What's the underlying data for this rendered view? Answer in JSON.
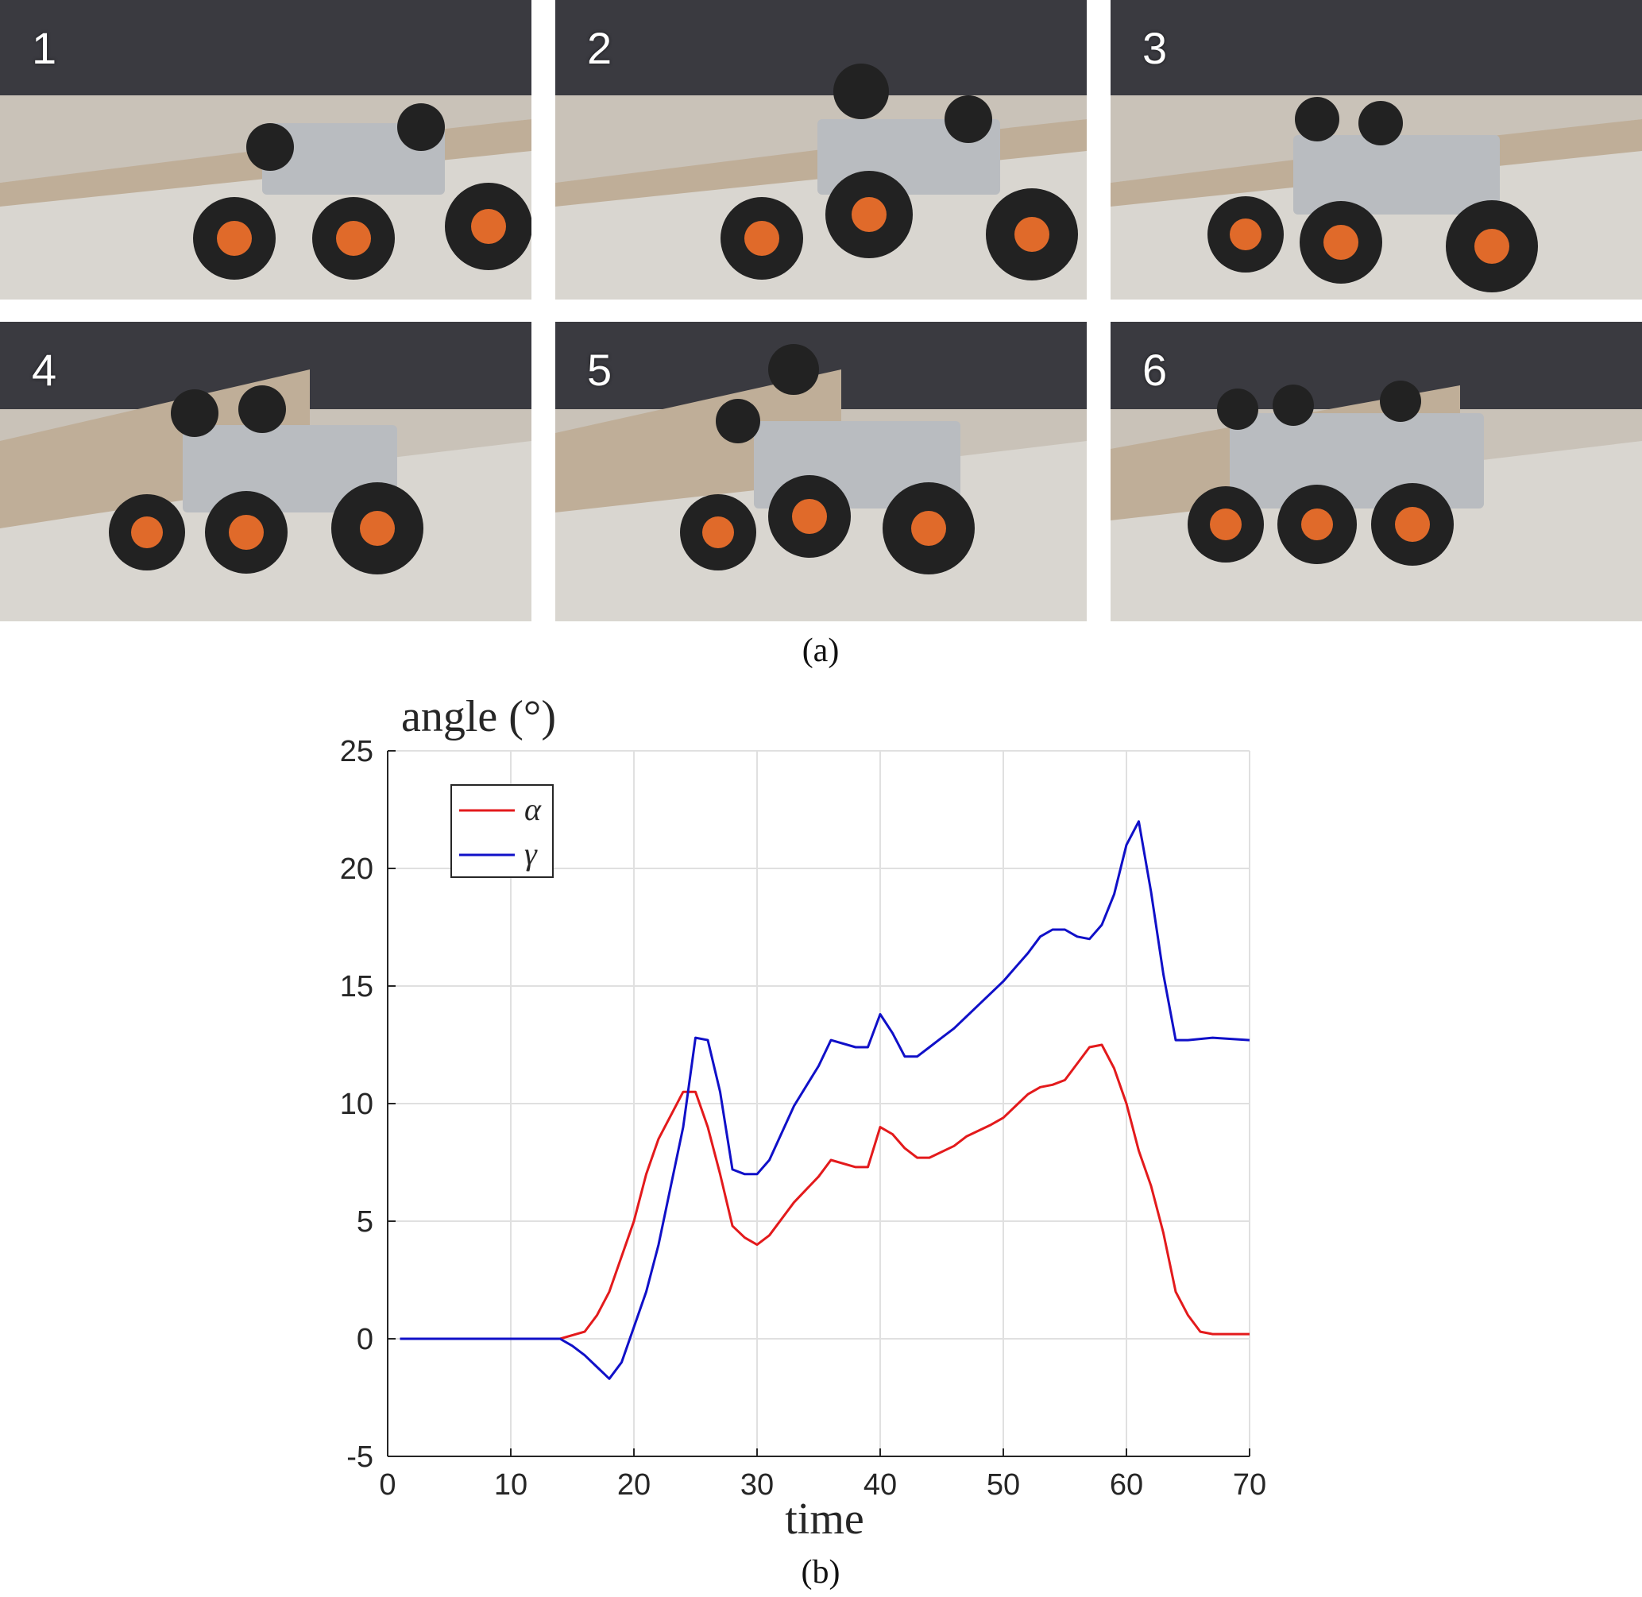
{
  "panel_a": {
    "caption": "(a)",
    "frames": [
      {
        "number": "1"
      },
      {
        "number": "2"
      },
      {
        "number": "3"
      },
      {
        "number": "4"
      },
      {
        "number": "5"
      },
      {
        "number": "6"
      }
    ]
  },
  "panel_b": {
    "caption": "(b)"
  },
  "chart_data": {
    "type": "line",
    "title": "",
    "ylabel": "angle (°)",
    "xlabel": "time",
    "xlim": [
      0,
      70
    ],
    "ylim": [
      -5,
      25
    ],
    "xticks": [
      0,
      10,
      20,
      30,
      40,
      50,
      60,
      70
    ],
    "yticks": [
      -5,
      0,
      5,
      10,
      15,
      20,
      25
    ],
    "grid": true,
    "legend_position": "top-left",
    "series": [
      {
        "name": "α",
        "color": "#e31a1c",
        "x": [
          1,
          14,
          16,
          17,
          18,
          19,
          20,
          21,
          22,
          23,
          24,
          25,
          26,
          27,
          28,
          29,
          30,
          31,
          33,
          35,
          36,
          38,
          39,
          40,
          41,
          42,
          43,
          44,
          46,
          47,
          49,
          50,
          51,
          52,
          53,
          54,
          55,
          57,
          58,
          59,
          60,
          61,
          62,
          63,
          64,
          65,
          66,
          67,
          70
        ],
        "y": [
          0,
          0,
          0.3,
          1.0,
          2.0,
          3.5,
          5.0,
          7.0,
          8.5,
          9.5,
          10.5,
          10.5,
          9.0,
          7.0,
          4.8,
          4.3,
          4.0,
          4.4,
          5.8,
          6.9,
          7.6,
          7.3,
          7.3,
          9.0,
          8.7,
          8.1,
          7.7,
          7.7,
          8.2,
          8.6,
          9.1,
          9.4,
          9.9,
          10.4,
          10.7,
          10.8,
          11.0,
          12.4,
          12.5,
          11.5,
          10.0,
          8.0,
          6.5,
          4.5,
          2.0,
          1.0,
          0.3,
          0.2,
          0.2
        ]
      },
      {
        "name": "γ",
        "color": "#1010c8",
        "x": [
          1,
          14,
          15,
          16,
          17,
          18,
          19,
          20,
          21,
          22,
          23,
          24,
          25,
          26,
          27,
          28,
          29,
          30,
          31,
          33,
          35,
          36,
          38,
          39,
          40,
          41,
          42,
          43,
          44,
          45,
          46,
          48,
          50,
          51,
          52,
          53,
          54,
          55,
          56,
          57,
          58,
          59,
          60,
          61,
          62,
          63,
          64,
          65,
          67,
          70
        ],
        "y": [
          0,
          0,
          -0.3,
          -0.7,
          -1.2,
          -1.7,
          -1.0,
          0.5,
          2.0,
          4.0,
          6.5,
          9.0,
          12.8,
          12.7,
          10.5,
          7.2,
          7.0,
          7.0,
          7.6,
          9.9,
          11.6,
          12.7,
          12.4,
          12.4,
          13.8,
          13.0,
          12.0,
          12.0,
          12.4,
          12.8,
          13.2,
          14.2,
          15.2,
          15.8,
          16.4,
          17.1,
          17.4,
          17.4,
          17.1,
          17.0,
          17.6,
          18.9,
          21.0,
          22.0,
          19.0,
          15.5,
          12.7,
          12.7,
          12.8,
          12.7
        ]
      }
    ]
  }
}
